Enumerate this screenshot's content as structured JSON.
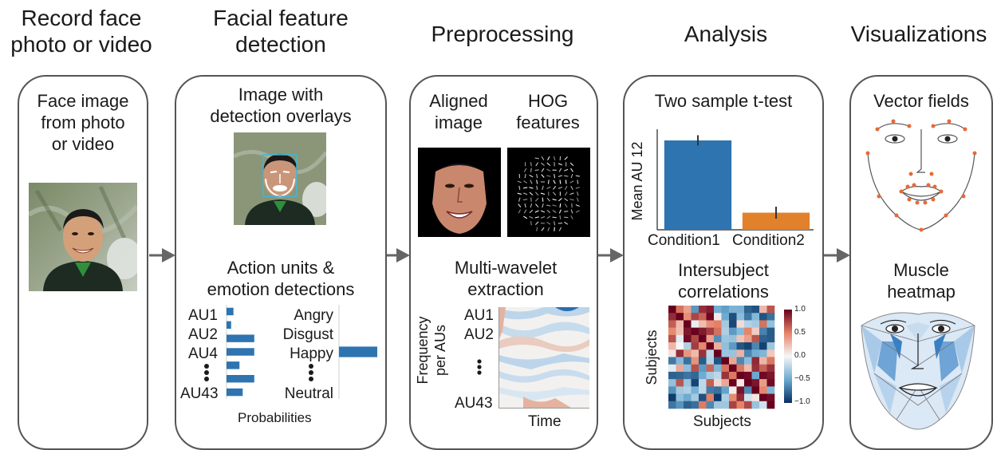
{
  "stages": [
    {
      "title_line1": "Record face",
      "title_line2": "photo or video"
    },
    {
      "title_line1": "Facial feature",
      "title_line2": "detection"
    },
    {
      "title_line1": "Preprocessing",
      "title_line2": ""
    },
    {
      "title_line1": "Analysis",
      "title_line2": ""
    },
    {
      "title_line1": "Visualizations",
      "title_line2": ""
    }
  ],
  "panel1": {
    "caption_line1": "Face image",
    "caption_line2": "from photo",
    "caption_line3": "or video"
  },
  "panel2": {
    "detect_line1": "Image with",
    "detect_line2": "detection overlays",
    "au_line1": "Action units &",
    "au_line2": "emotion detections",
    "au_labels": [
      "AU1",
      "AU2",
      "AU4",
      "AU43"
    ],
    "emotion_labels": [
      "Angry",
      "Disgust",
      "Happy",
      "Neutral"
    ],
    "ellipsis": "•\n•\n•",
    "xlabel": "Probabilities",
    "au_values": [
      0.15,
      0.1,
      0.6,
      0.6,
      0.28,
      0.6,
      0.35
    ],
    "emotion_values": [
      0,
      0,
      1.0,
      0
    ]
  },
  "panel3": {
    "aligned_line1": "Aligned",
    "aligned_line2": "image",
    "hog_line1": "HOG",
    "hog_line2": "features",
    "wavelet_line1": "Multi-wavelet",
    "wavelet_line2": "extraction",
    "ylabel_line1": "Frequency",
    "ylabel_line2": "per AUs",
    "xlabel": "Time",
    "rows": [
      "AU1",
      "AU2",
      "AU43"
    ]
  },
  "panel4": {
    "ttest_title": "Two sample t-test",
    "isc_line1": "Intersubject",
    "isc_line2": "correlations",
    "isc_xlabel": "Subjects",
    "isc_ylabel": "Subjects",
    "colorbar_ticks": [
      "1.0",
      "0.5",
      "0.0",
      "−0.5",
      "−1.0"
    ]
  },
  "panel5": {
    "vector_title": "Vector fields",
    "muscle_line1": "Muscle",
    "muscle_line2": "heatmap"
  },
  "chart_data": {
    "type": "bar",
    "title": "Two sample t-test",
    "categories": [
      "Condition1",
      "Condition2"
    ],
    "values": [
      12,
      2.3
    ],
    "errors": [
      0.7,
      0.8
    ],
    "ylabel": "Mean AU 12",
    "xlabel": "",
    "ylim": [
      0,
      13.5
    ],
    "colors": [
      "#2e74b0",
      "#e1812c"
    ]
  },
  "colors": {
    "border": "#555555",
    "arrow": "#666666",
    "bar_blue": "#2e74b0",
    "bar_orange": "#e1812c"
  }
}
